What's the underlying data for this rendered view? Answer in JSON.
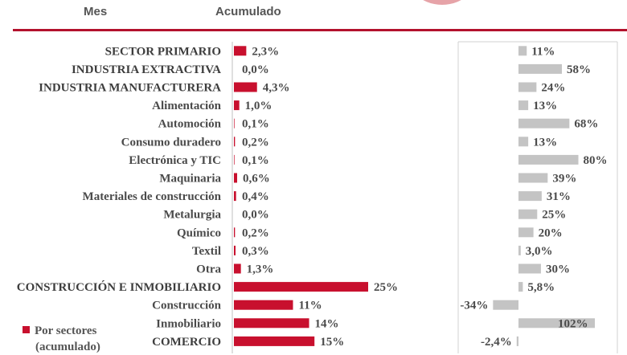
{
  "header": {
    "mes": "Mes",
    "acumulado": "Acumulado"
  },
  "legend": {
    "line1": "Por sectores",
    "line2": "(acumulado)"
  },
  "colors": {
    "accent": "#c8102e",
    "gray_bar": "#c4c4c4",
    "rule": "#b3122d"
  },
  "chart_data": [
    {
      "type": "bar",
      "orientation": "horizontal",
      "series": [
        {
          "name": "Por sectores (acumulado)",
          "values": [
            2.3,
            0.0,
            4.3,
            1.0,
            0.1,
            0.2,
            0.1,
            0.6,
            0.4,
            0.0,
            0.2,
            0.3,
            1.3,
            25,
            11,
            14,
            15
          ]
        }
      ],
      "labels": [
        "2,3%",
        "0,0%",
        "4,3%",
        "1,0%",
        "0,1%",
        "0,2%",
        "0,1%",
        "0,6%",
        "0,4%",
        "0,0%",
        "0,2%",
        "0,3%",
        "1,3%",
        "25%",
        "11%",
        "14%",
        "15%"
      ],
      "categories": [
        "SECTOR PRIMARIO",
        "INDUSTRIA EXTRACTIVA",
        "INDUSTRIA MANUFACTURERA",
        "Alimentación",
        "Automoción",
        "Consumo duradero",
        "Electrónica y TIC",
        "Maquinaria",
        "Materiales de construcción",
        "Metalurgia",
        "Químico",
        "Textil",
        "Otra",
        "CONSTRUCCIÓN E INMOBILIARIO",
        "Construcción",
        "Inmobiliario",
        "COMERCIO"
      ],
      "bold": [
        true,
        true,
        true,
        false,
        false,
        false,
        false,
        false,
        false,
        false,
        false,
        false,
        false,
        true,
        false,
        false,
        true
      ],
      "xlim": [
        0,
        28
      ]
    },
    {
      "type": "bar",
      "orientation": "horizontal",
      "values": [
        11,
        58,
        24,
        13,
        68,
        13,
        80,
        39,
        31,
        25,
        20,
        3.0,
        30,
        5.8,
        -34,
        102,
        -2.4
      ],
      "labels": [
        "11%",
        "58%",
        "24%",
        "13%",
        "68%",
        "13%",
        "80%",
        "39%",
        "31%",
        "25%",
        "20%",
        "3,0%",
        "30%",
        "5,8%",
        "-34%",
        "102%",
        "-2,4%"
      ],
      "xlim": [
        -45,
        130
      ]
    }
  ]
}
